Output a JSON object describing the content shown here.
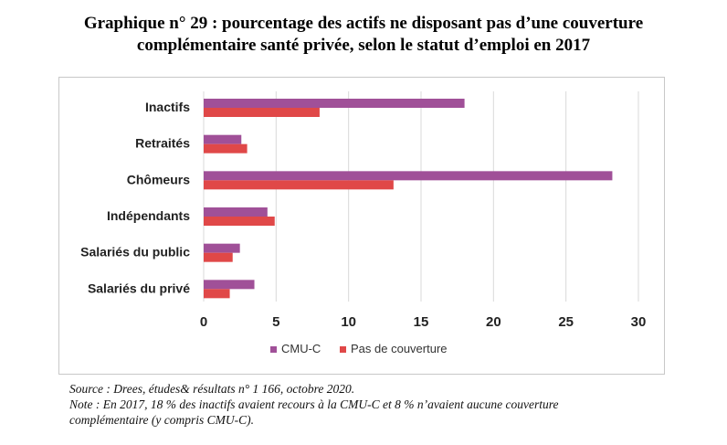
{
  "title_line1": "Graphique n° 29 : pourcentage des actifs ne disposant pas d’une couverture",
  "title_line2": "complémentaire santé privée, selon le statut d’emploi en 2017",
  "chart_data": {
    "type": "bar",
    "orientation": "horizontal",
    "categories": [
      "Inactifs",
      "Retraités",
      "Chômeurs",
      "Indépendants",
      "Salariés du public",
      "Salariés du privé"
    ],
    "series": [
      {
        "name": "CMU-C",
        "color": "#a05098",
        "values": [
          18,
          2.6,
          28.2,
          4.4,
          2.5,
          3.5
        ]
      },
      {
        "name": "Pas de couverture",
        "color": "#e04848",
        "values": [
          8,
          3,
          13.1,
          4.9,
          2,
          1.8
        ]
      }
    ],
    "xlim": [
      0,
      30
    ],
    "xticks": [
      "0",
      "5",
      "10",
      "15",
      "20",
      "25",
      "30"
    ],
    "grid": "vertical",
    "legend": "bottom"
  },
  "footer": {
    "source": "Source : Drees, études& résultats n° 1 166, octobre 2020.",
    "note_line1": "Note : En 2017, 18 % des inactifs avaient recours à la CMU-C et 8 % n’avaient aucune couverture",
    "note_line2": "complémentaire (y compris CMU-C)."
  }
}
